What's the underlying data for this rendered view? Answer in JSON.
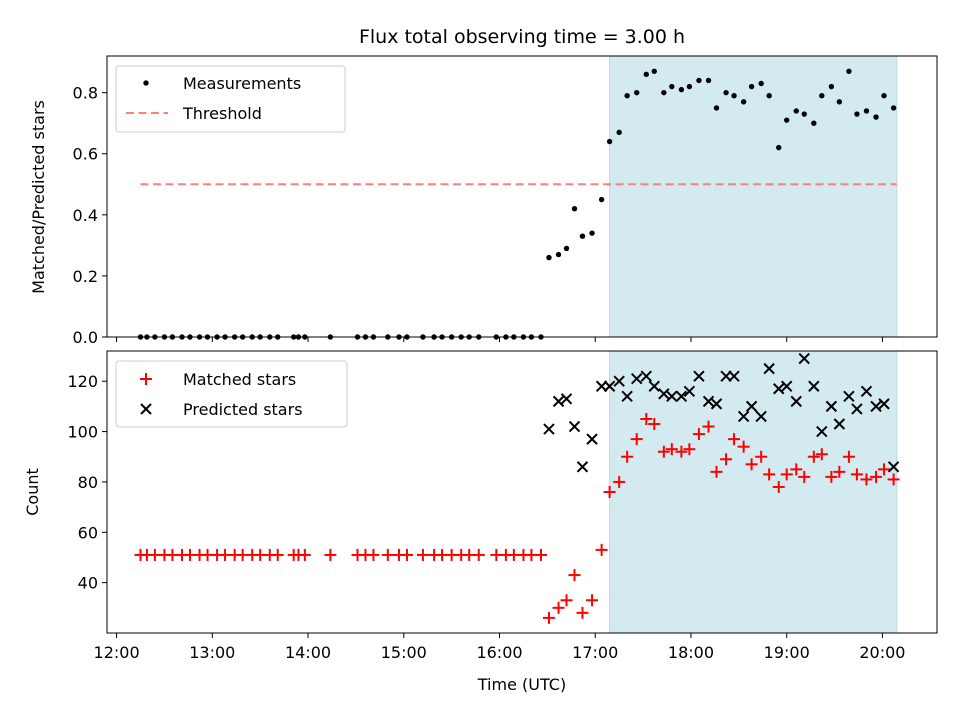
{
  "chart_data": [
    {
      "type": "scatter",
      "title": "Flux total observing time = 3.00 h",
      "xlabel": "",
      "ylabel": "Matched/Predicted stars",
      "ylim": [
        0,
        0.92
      ],
      "yticks": [
        "0.0",
        "0.2",
        "0.4",
        "0.6",
        "0.8"
      ],
      "shaded_region_x": [
        "17:09",
        "20:09"
      ],
      "shaded_color": "#d4eaf1",
      "legend": {
        "placement": "upper-left",
        "entries": [
          "Measurements",
          "Threshold"
        ]
      },
      "threshold": {
        "name": "Threshold",
        "y": 0.5,
        "x_range": [
          "12:15",
          "20:09"
        ],
        "color": "#ff7f7f",
        "style": "dashed"
      },
      "series": [
        {
          "name": "Measurements",
          "color": "#000000",
          "marker": "dot",
          "x": [
            "12:15",
            "12:19",
            "12:24",
            "12:30",
            "12:35",
            "12:41",
            "12:46",
            "12:52",
            "12:57",
            "13:03",
            "13:08",
            "13:14",
            "13:19",
            "13:25",
            "13:30",
            "13:36",
            "13:41",
            "13:51",
            "13:54",
            "13:58",
            "14:14",
            "14:31",
            "14:36",
            "14:41",
            "14:50",
            "14:57",
            "15:02",
            "15:12",
            "15:19",
            "15:24",
            "15:30",
            "15:36",
            "15:41",
            "15:47",
            "15:58",
            "16:04",
            "16:09",
            "16:15",
            "16:20",
            "16:26",
            "16:31",
            "16:37",
            "16:42",
            "16:47",
            "16:52",
            "16:58",
            "17:04",
            "17:09",
            "17:15",
            "17:20",
            "17:26",
            "17:32",
            "17:37",
            "17:43",
            "17:48",
            "17:54",
            "17:59",
            "18:05",
            "18:11",
            "18:16",
            "18:22",
            "18:27",
            "18:33",
            "18:38",
            "18:44",
            "18:49",
            "18:55",
            "19:00",
            "19:06",
            "19:11",
            "19:17",
            "19:22",
            "19:28",
            "19:33",
            "19:39",
            "19:44",
            "19:50",
            "19:56",
            "20:01",
            "20:07"
          ],
          "y": [
            0,
            0,
            0,
            0,
            0,
            0,
            0,
            0,
            0,
            0,
            0,
            0,
            0,
            0,
            0,
            0,
            0,
            0,
            0,
            0,
            0,
            0,
            0,
            0,
            0,
            0,
            0,
            0,
            0,
            0,
            0,
            0,
            0,
            0,
            0,
            0,
            0,
            0,
            0,
            0,
            0.26,
            0.27,
            0.29,
            0.42,
            0.33,
            0.34,
            0.45,
            0.64,
            0.67,
            0.79,
            0.8,
            0.86,
            0.87,
            0.8,
            0.82,
            0.81,
            0.82,
            0.84,
            0.84,
            0.75,
            0.8,
            0.79,
            0.77,
            0.82,
            0.83,
            0.79,
            0.62,
            0.71,
            0.74,
            0.73,
            0.7,
            0.79,
            0.82,
            0.77,
            0.87,
            0.73,
            0.74,
            0.72,
            0.79,
            0.75
          ]
        }
      ]
    },
    {
      "type": "scatter",
      "title": "",
      "xlabel": "Time (UTC)",
      "ylabel": "Count",
      "ylim": [
        20,
        132
      ],
      "yticks": [
        "40",
        "60",
        "80",
        "100",
        "120"
      ],
      "xticks": [
        "12:00",
        "13:00",
        "14:00",
        "15:00",
        "16:00",
        "17:00",
        "18:00",
        "19:00",
        "20:00"
      ],
      "shaded_region_x": [
        "17:09",
        "20:09"
      ],
      "legend": {
        "placement": "upper-left",
        "entries": [
          "Matched stars",
          "Predicted stars"
        ]
      },
      "series": [
        {
          "name": "Matched stars",
          "color": "#ff0000",
          "marker": "plus",
          "x": [
            "12:15",
            "12:19",
            "12:24",
            "12:30",
            "12:35",
            "12:41",
            "12:46",
            "12:52",
            "12:57",
            "13:03",
            "13:08",
            "13:14",
            "13:19",
            "13:25",
            "13:30",
            "13:36",
            "13:41",
            "13:51",
            "13:54",
            "13:58",
            "14:14",
            "14:31",
            "14:36",
            "14:41",
            "14:50",
            "14:57",
            "15:02",
            "15:12",
            "15:19",
            "15:24",
            "15:30",
            "15:36",
            "15:41",
            "15:47",
            "15:58",
            "16:04",
            "16:09",
            "16:15",
            "16:20",
            "16:26",
            "16:31",
            "16:37",
            "16:42",
            "16:47",
            "16:52",
            "16:58",
            "17:04",
            "17:09",
            "17:15",
            "17:20",
            "17:26",
            "17:32",
            "17:37",
            "17:43",
            "17:48",
            "17:54",
            "17:59",
            "18:05",
            "18:11",
            "18:16",
            "18:22",
            "18:27",
            "18:33",
            "18:38",
            "18:44",
            "18:49",
            "18:55",
            "19:00",
            "19:06",
            "19:11",
            "19:17",
            "19:22",
            "19:28",
            "19:33",
            "19:39",
            "19:44",
            "19:50",
            "19:56",
            "20:01",
            "20:07"
          ],
          "y": [
            51,
            51,
            51,
            51,
            51,
            51,
            51,
            51,
            51,
            51,
            51,
            51,
            51,
            51,
            51,
            51,
            51,
            51,
            51,
            51,
            51,
            51,
            51,
            51,
            51,
            51,
            51,
            51,
            51,
            51,
            51,
            51,
            51,
            51,
            51,
            51,
            51,
            51,
            51,
            51,
            26,
            30,
            33,
            43,
            28,
            33,
            53,
            76,
            80,
            90,
            97,
            105,
            103,
            92,
            93,
            92,
            93,
            99,
            102,
            84,
            89,
            97,
            94,
            87,
            90,
            83,
            78,
            83,
            85,
            82,
            90,
            91,
            82,
            84,
            90,
            83,
            81,
            82,
            85,
            81
          ]
        },
        {
          "name": "Predicted stars",
          "color": "#000000",
          "marker": "x",
          "x": [
            "16:31",
            "16:37",
            "16:42",
            "16:47",
            "16:52",
            "16:58",
            "17:04",
            "17:09",
            "17:15",
            "17:20",
            "17:26",
            "17:32",
            "17:37",
            "17:43",
            "17:48",
            "17:54",
            "17:59",
            "18:05",
            "18:11",
            "18:16",
            "18:22",
            "18:27",
            "18:33",
            "18:38",
            "18:44",
            "18:49",
            "18:55",
            "19:00",
            "19:06",
            "19:11",
            "19:17",
            "19:22",
            "19:28",
            "19:33",
            "19:39",
            "19:44",
            "19:50",
            "19:56",
            "20:01",
            "20:07"
          ],
          "y": [
            101,
            112,
            113,
            102,
            86,
            97,
            118,
            118,
            120,
            114,
            121,
            122,
            118,
            115,
            114,
            114,
            116,
            122,
            112,
            111,
            122,
            122,
            106,
            110,
            106,
            125,
            117,
            118,
            112,
            129,
            118,
            100,
            110,
            103,
            114,
            109,
            116,
            110,
            111,
            86
          ]
        }
      ]
    }
  ]
}
